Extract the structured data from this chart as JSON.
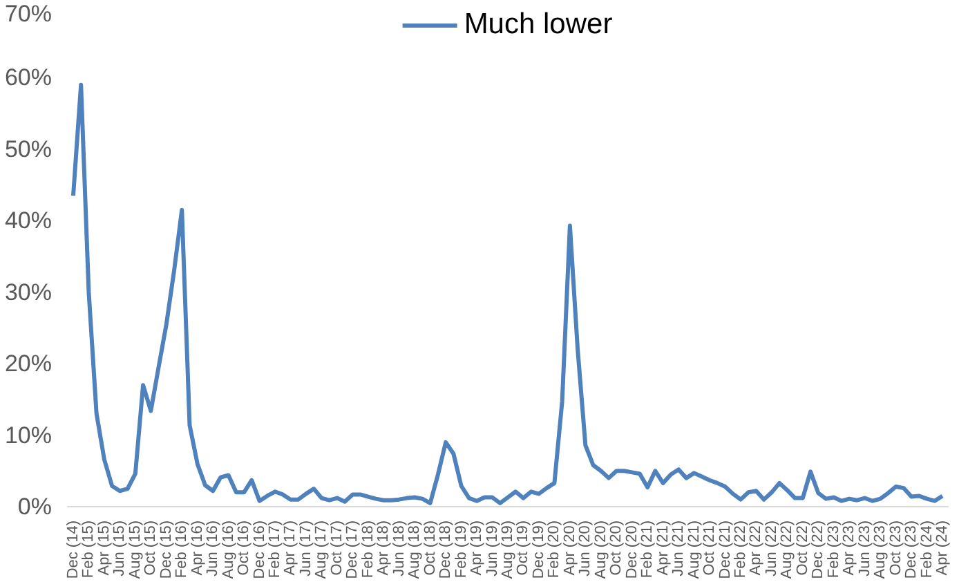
{
  "chart_data": {
    "type": "line",
    "legend": "top",
    "grid": false,
    "marker": "none",
    "line_style": "solid",
    "categories": [
      "Dec (14)",
      null,
      "Feb (15)",
      null,
      "Apr (15)",
      null,
      "Jun (15)",
      null,
      "Aug (15)",
      null,
      "Oct (15)",
      null,
      "Dec (15)",
      null,
      "Feb (16)",
      null,
      "Apr (16)",
      null,
      "Jun (16)",
      null,
      "Aug (16)",
      null,
      "Oct (16)",
      null,
      "Dec (16)",
      null,
      "Feb (17)",
      null,
      "Apr (17)",
      null,
      "Jun (17)",
      null,
      "Aug (17)",
      null,
      "Oct (17)",
      null,
      "Dec (17)",
      null,
      "Feb (18)",
      null,
      "Apr (18)",
      null,
      "Jun (18)",
      null,
      "Aug (18)",
      null,
      "Oct (18)",
      null,
      "Dec (18)",
      null,
      "Feb (19)",
      null,
      "Apr (19)",
      null,
      "Jun (19)",
      null,
      "Aug (19)",
      null,
      "Oct (19)",
      null,
      "Dec (19)",
      null,
      "Feb (20)",
      null,
      "Apr (20)",
      null,
      "Jun (20)",
      null,
      "Aug (20)",
      null,
      "Oct (20)",
      null,
      "Dec (20)",
      null,
      "Feb (21)",
      null,
      "Apr (21)",
      null,
      "Jun (21)",
      null,
      "Aug (21)",
      null,
      "Oct (21)",
      null,
      "Dec (21)",
      null,
      "Feb (22)",
      null,
      "Apr (22)",
      null,
      "Jun (22)",
      null,
      "Aug (22)",
      null,
      "Oct (22)",
      null,
      "Dec (22)",
      null,
      "Feb (23)",
      null,
      "Apr (23)",
      null,
      "Jun (23)",
      null,
      "Aug (23)",
      null,
      "Oct (23)",
      null,
      "Dec (23)",
      null,
      "Feb (24)",
      null,
      "Apr (24)"
    ],
    "series": [
      {
        "name": "Much lower",
        "color": "#4f81bd",
        "values": [
          43.5,
          59,
          30,
          13,
          6.6,
          2.9,
          2.2,
          2.5,
          4.6,
          17,
          13.4,
          19.5,
          25.5,
          33,
          41.5,
          11.4,
          6,
          3,
          2.2,
          4.1,
          4.4,
          2,
          2,
          3.7,
          0.8,
          1.5,
          2.1,
          1.7,
          1,
          1,
          1.8,
          2.5,
          1.2,
          0.9,
          1.2,
          0.7,
          1.7,
          1.7,
          1.4,
          1.1,
          0.9,
          0.9,
          1,
          1.2,
          1.3,
          1.1,
          0.5,
          4.5,
          9,
          7.4,
          2.9,
          1.2,
          0.8,
          1.3,
          1.3,
          0.5,
          1.3,
          2.1,
          1.2,
          2.1,
          1.8,
          2.6,
          3.3,
          14.7,
          39.3,
          22,
          8.6,
          5.8,
          5,
          4,
          5,
          5,
          4.8,
          4.6,
          2.7,
          5,
          3.3,
          4.5,
          5.2,
          4,
          4.7,
          4.2,
          3.7,
          3.3,
          2.8,
          1.8,
          1,
          2,
          2.2,
          1,
          2,
          3.3,
          2.3,
          1.2,
          1.2,
          4.9,
          1.9,
          1.1,
          1.3,
          0.8,
          1.1,
          0.9,
          1.2,
          0.8,
          1.1,
          1.9,
          2.8,
          2.6,
          1.4,
          1.5,
          1.1,
          0.8,
          1.5
        ]
      }
    ],
    "ylim": [
      0,
      70
    ],
    "yticks": [
      {
        "value": 0,
        "label": "0%"
      },
      {
        "value": 10,
        "label": "10%"
      },
      {
        "value": 20,
        "label": "20%"
      },
      {
        "value": 30,
        "label": "30%"
      },
      {
        "value": 40,
        "label": "40%"
      },
      {
        "value": 50,
        "label": "50%"
      },
      {
        "value": 60,
        "label": "60%"
      },
      {
        "value": 70,
        "label": "70%"
      }
    ]
  }
}
